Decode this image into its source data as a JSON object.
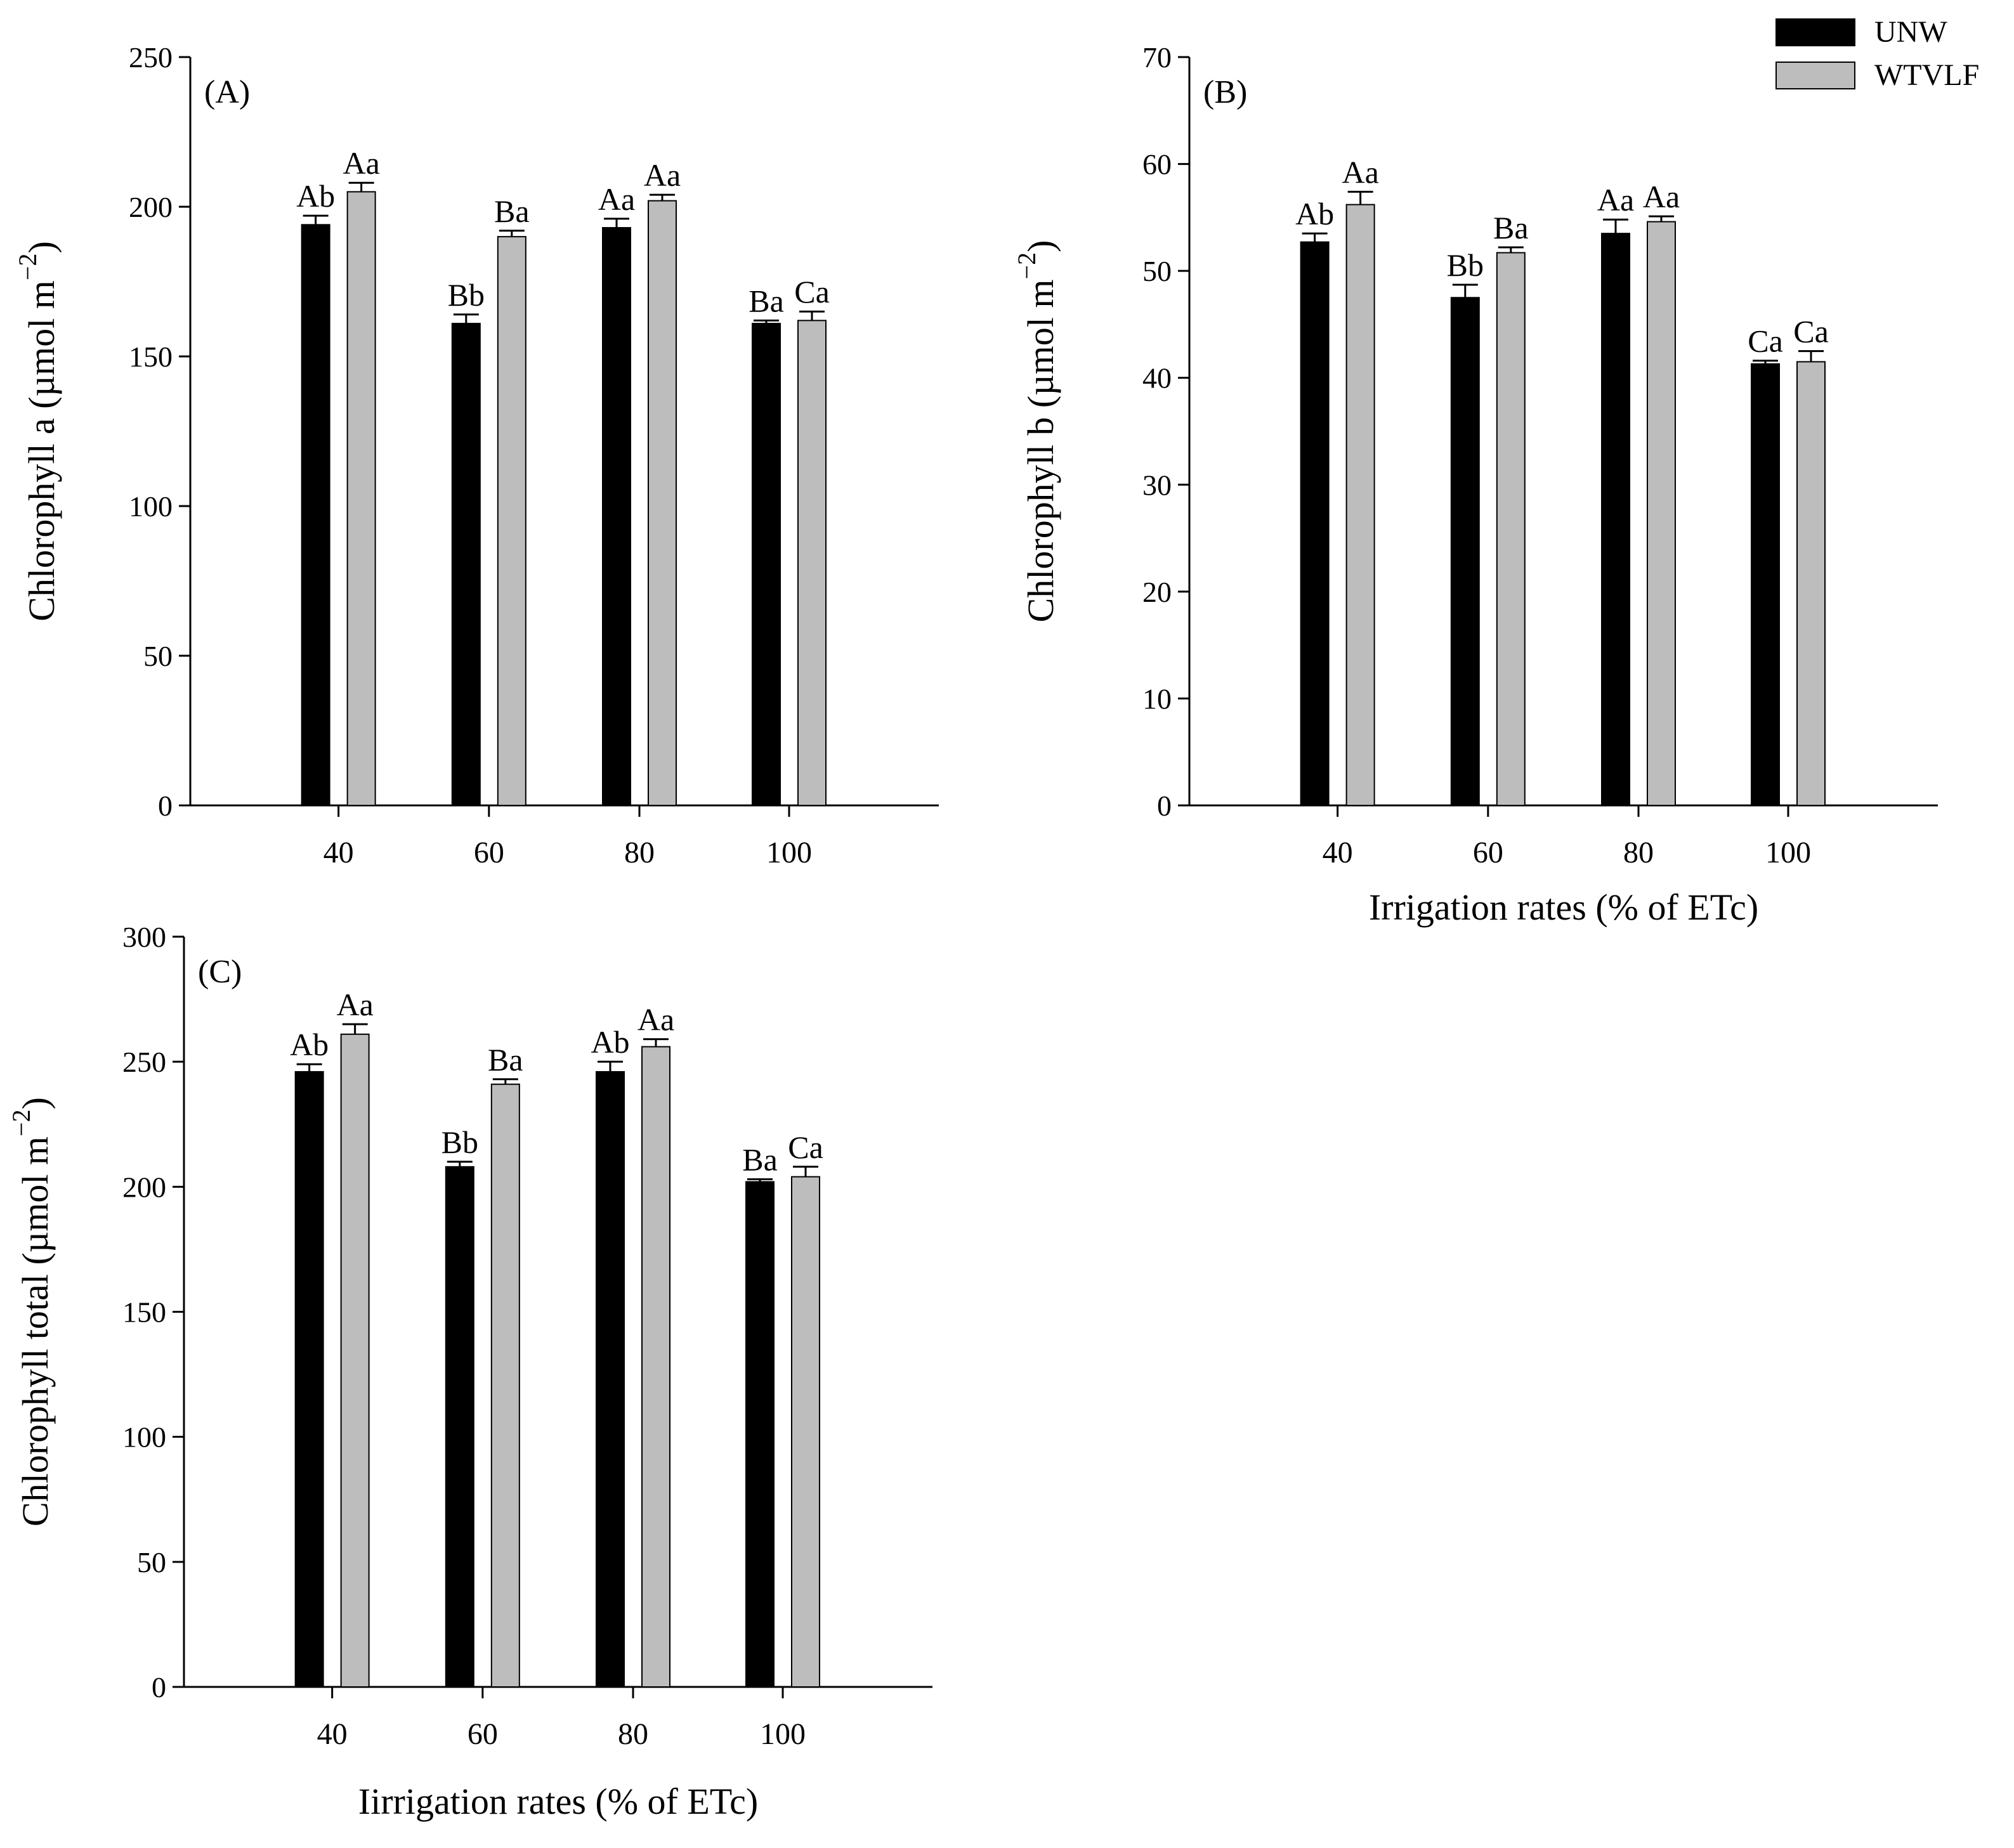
{
  "legend": {
    "placement": "top-right",
    "items": [
      {
        "label": "UNW",
        "color": "#000000"
      },
      {
        "label": "WTVLF",
        "color": "#bdbdbd"
      }
    ]
  },
  "chart_data": [
    {
      "type": "bar",
      "panel_label": "(A)",
      "categories": [
        "40",
        "60",
        "80",
        "100"
      ],
      "ylabel": "Chlorophyll  a (µmol m",
      "ylabel_sup": "−2",
      "ylabel_close": ")",
      "xlabel": "",
      "ylim": [
        0,
        250
      ],
      "yticks": [
        0,
        50,
        100,
        150,
        200,
        250
      ],
      "grid": false,
      "series": [
        {
          "name": "UNW",
          "color": "#000000",
          "values": [
            194,
            161,
            193,
            161
          ],
          "errors": [
            3,
            3,
            3,
            1
          ],
          "letters": [
            "Ab",
            "Bb",
            "Aa",
            "Ba"
          ]
        },
        {
          "name": "WTVLF",
          "color": "#bdbdbd",
          "values": [
            205,
            190,
            202,
            162
          ],
          "errors": [
            3,
            2,
            2,
            3
          ],
          "letters": [
            "Aa",
            "Ba",
            "Aa",
            "Ca"
          ]
        }
      ]
    },
    {
      "type": "bar",
      "panel_label": "(B)",
      "categories": [
        "40",
        "60",
        "80",
        "100"
      ],
      "ylabel": "Chlorophyll  b (µmol m",
      "ylabel_sup": "−2",
      "ylabel_close": ")",
      "xlabel": "Irrigation rates (% of  ETc)",
      "ylim": [
        0,
        70
      ],
      "yticks": [
        0,
        10,
        20,
        30,
        40,
        50,
        60,
        70
      ],
      "grid": false,
      "series": [
        {
          "name": "UNW",
          "color": "#000000",
          "values": [
            52.7,
            47.5,
            53.5,
            41.3
          ],
          "errors": [
            0.8,
            1.2,
            1.3,
            0.3
          ],
          "letters": [
            "Ab",
            "Bb",
            "Aa",
            "Ca"
          ]
        },
        {
          "name": "WTVLF",
          "color": "#bdbdbd",
          "values": [
            56.2,
            51.7,
            54.6,
            41.5
          ],
          "errors": [
            1.2,
            0.5,
            0.5,
            1.0
          ],
          "letters": [
            "Aa",
            "Ba",
            "Aa",
            "Ca"
          ]
        }
      ]
    },
    {
      "type": "bar",
      "panel_label": "(C)",
      "categories": [
        "40",
        "60",
        "80",
        "100"
      ],
      "ylabel": "Chlorophyll total (µmol m",
      "ylabel_sup": "−2",
      "ylabel_close": ")",
      "xlabel": "Iirrigation rates (% of  ETc)",
      "ylim": [
        0,
        300
      ],
      "yticks": [
        0,
        50,
        100,
        150,
        200,
        250,
        300
      ],
      "grid": false,
      "series": [
        {
          "name": "UNW",
          "color": "#000000",
          "values": [
            246,
            208,
            246,
            202
          ],
          "errors": [
            3,
            2,
            4,
            1
          ],
          "letters": [
            "Ab",
            "Bb",
            "Ab",
            "Ba"
          ]
        },
        {
          "name": "WTVLF",
          "color": "#bdbdbd",
          "values": [
            261,
            241,
            256,
            204
          ],
          "errors": [
            4,
            2,
            3,
            4
          ],
          "letters": [
            "Aa",
            "Ba",
            "Aa",
            "Ca"
          ]
        }
      ]
    }
  ]
}
